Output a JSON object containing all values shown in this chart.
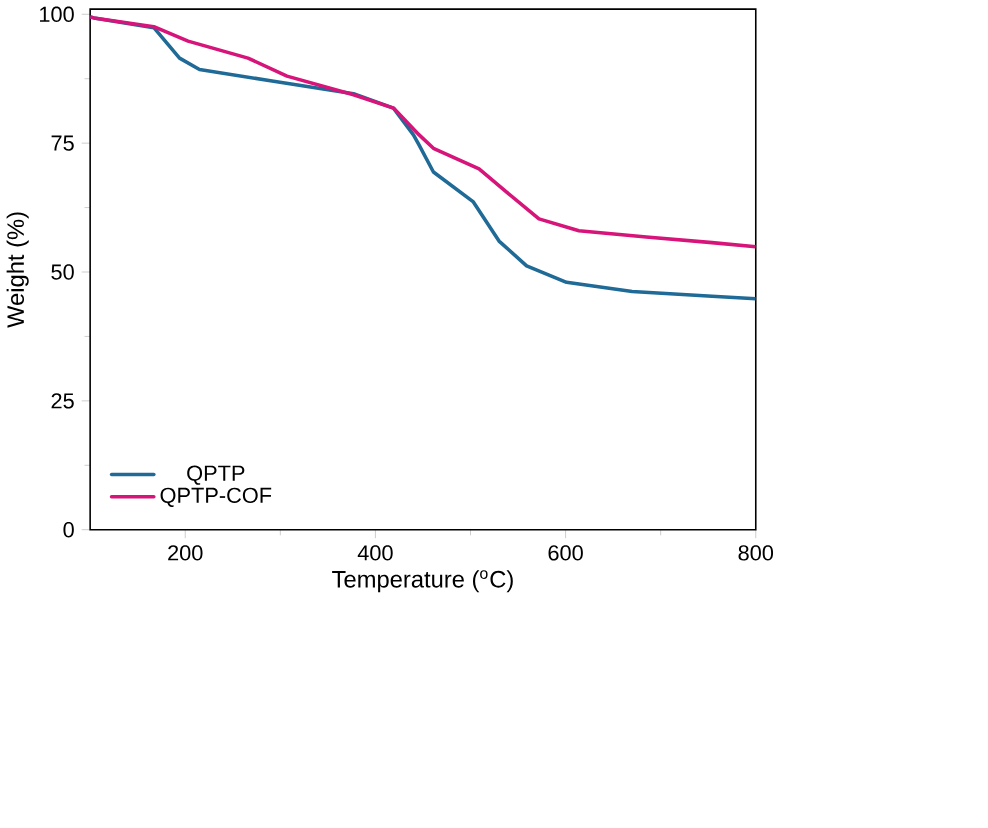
{
  "chart_data": {
    "type": "line",
    "xlabel": "Temperature ($^{o}$C)",
    "ylabel": "Weight (%)",
    "xlim": [
      100,
      800
    ],
    "ylim": [
      0,
      101
    ],
    "xticks": [
      200,
      400,
      600,
      800
    ],
    "yticks": [
      0,
      25,
      50,
      75,
      100
    ],
    "legend": "bottom left",
    "grid": false,
    "marker": "none",
    "line_style": "solid",
    "series": [
      {
        "name": "QPTP",
        "color": "#1f6a96",
        "x": [
          100,
          104,
          167,
          194,
          215,
          293,
          377,
          419,
          440,
          446,
          461,
          503,
          530,
          559,
          601,
          670,
          754,
          800
        ],
        "values": [
          99.5,
          99.3,
          97.4,
          91.5,
          89.3,
          87,
          84.6,
          81.8,
          76.6,
          74.6,
          69.4,
          63.6,
          56,
          51.2,
          48,
          46.2,
          45.3,
          44.8
        ]
      },
      {
        "name": "QPTP-COF",
        "color": "#d6147a",
        "x": [
          100,
          104,
          167,
          203,
          266,
          307,
          377,
          419,
          446,
          461,
          509,
          538,
          572,
          614,
          685,
          754,
          800
        ],
        "values": [
          99.5,
          99.3,
          97.6,
          94.8,
          91.5,
          88,
          84.4,
          81.8,
          76.6,
          74,
          70,
          65.5,
          60.3,
          58,
          56.8,
          55.7,
          54.9
        ]
      }
    ]
  }
}
